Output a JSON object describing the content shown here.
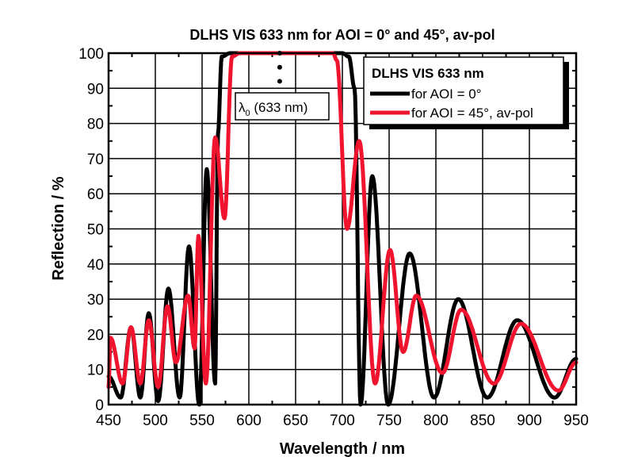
{
  "chart_data": {
    "type": "line",
    "title": "DLHS VIS 633 nm for AOI = 0° and 45°, av-pol",
    "xlabel": "Wavelength / nm",
    "ylabel": "Reflection / %",
    "xlim": [
      450,
      950
    ],
    "ylim": [
      0,
      100
    ],
    "xticks": [
      450,
      500,
      550,
      600,
      650,
      700,
      750,
      800,
      850,
      900,
      950
    ],
    "yticks": [
      0,
      10,
      20,
      30,
      40,
      50,
      60,
      70,
      80,
      90,
      100
    ],
    "grid": true,
    "legend": {
      "title": "DLHS VIS 633 nm",
      "placement": "top-right"
    },
    "annotation": {
      "symbol": "λ",
      "subscript": "0",
      "text": " (633 nm)",
      "x": 633
    },
    "series": [
      {
        "name": "for AOI = 0°",
        "color": "#000000",
        "x": [
          450,
          463,
          474,
          484,
          493,
          503,
          514,
          526,
          536,
          547,
          555,
          564,
          567,
          571,
          580,
          700,
          707,
          713,
          719.5,
          732,
          749,
          772,
          798,
          824,
          855,
          887,
          927,
          950
        ],
        "y": [
          8,
          2,
          22,
          2,
          26,
          1,
          33,
          2,
          45,
          0,
          67,
          6,
          77,
          99,
          100,
          100,
          99,
          90,
          0,
          65,
          0,
          43,
          2,
          30,
          2,
          24,
          2,
          13
        ]
      },
      {
        "name": "for AOI = 45°, av-pol",
        "color": "#f0142f",
        "x": [
          450,
          452,
          465,
          474,
          484,
          493,
          503,
          513,
          522,
          535,
          542,
          546,
          554,
          564,
          574,
          582,
          590,
          690,
          694,
          705,
          718,
          735,
          751,
          765,
          779,
          807,
          827,
          862,
          891,
          931,
          950
        ],
        "y": [
          5,
          19,
          6,
          22,
          6,
          24,
          5,
          28,
          12,
          31,
          16,
          48,
          6,
          76,
          53,
          99,
          100,
          100,
          98,
          50,
          75,
          6,
          44,
          15,
          31,
          9,
          27,
          6,
          23,
          4,
          12
        ]
      }
    ]
  }
}
